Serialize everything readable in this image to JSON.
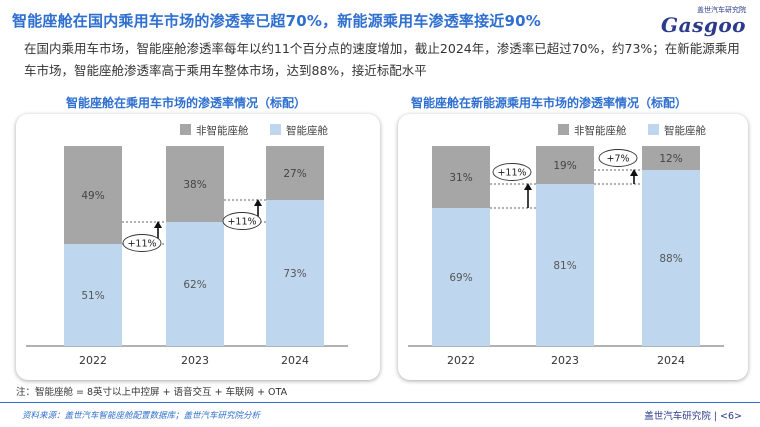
{
  "title": "智能座舱在国内乘用车市场的渗透率已超70%，新能源乘用车渗透率接近90%",
  "logo": {
    "top_text": "盖世汽车研究院",
    "main_text": "Gasgoo"
  },
  "summary": "在国内乘用车市场，智能座舱渗透率每年以约11个百分点的速度增加，截止2024年，渗透率已超过70%，约73%；在新能源乘用车市场，智能座舱渗透率高于乘用车整体市场，达到88%，接近标配水平",
  "footnote": "注：智能座舱 = 8英寸以上中控屏 + 语音交互 + 车联网 + OTA",
  "footer": {
    "source": "资料来源：盖世汽车智能座舱配置数据库；盖世汽车研究院分析",
    "org": "盖世汽车研究院",
    "page": "<6>"
  },
  "colors": {
    "non_smart": "#a6a6a6",
    "smart": "#bfd7ee",
    "title_blue": "#2e6fd0"
  },
  "chart_data": [
    {
      "type": "bar",
      "stacked": true,
      "title": "智能座舱在乘用车市场的渗透率情况（标配）",
      "categories": [
        "2022",
        "2023",
        "2024"
      ],
      "series": [
        {
          "name": "非智能座舱",
          "values": [
            49,
            38,
            27
          ],
          "labels": [
            "49%",
            "38%",
            "27%"
          ]
        },
        {
          "name": "智能座舱",
          "values": [
            51,
            62,
            73
          ],
          "labels": [
            "51%",
            "62%",
            "73%"
          ]
        }
      ],
      "annotations": [
        "+11%",
        "+11%"
      ],
      "ylim": [
        0,
        100
      ],
      "legend": "top"
    },
    {
      "type": "bar",
      "stacked": true,
      "title": "智能座舱在新能源乘用车市场的渗透率情况（标配）",
      "categories": [
        "2022",
        "2023",
        "2024"
      ],
      "series": [
        {
          "name": "非智能座舱",
          "values": [
            31,
            19,
            12
          ],
          "labels": [
            "31%",
            "19%",
            "12%"
          ]
        },
        {
          "name": "智能座舱",
          "values": [
            69,
            81,
            88
          ],
          "labels": [
            "69%",
            "81%",
            "88%"
          ]
        }
      ],
      "annotations": [
        "+11%",
        "+7%"
      ],
      "ylim": [
        0,
        100
      ],
      "legend": "top"
    }
  ]
}
